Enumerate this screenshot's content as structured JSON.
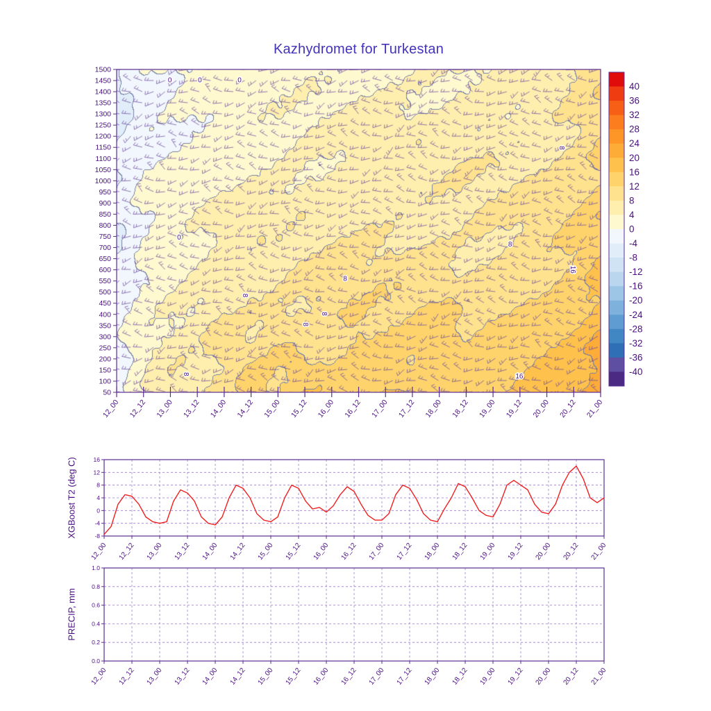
{
  "title": "Kazhydromet for Turkestan",
  "colors": {
    "title": "#4333b8",
    "axis": "#5b2d91",
    "tick_text": "#4a0e82",
    "grid_dash": "#9b7fc7",
    "series_line": "#ef2020",
    "barb": "#6a4a9a",
    "contour_line": "#7882a5",
    "background": "#ffffff"
  },
  "x_ticks": [
    "12_00",
    "12_12",
    "13_00",
    "13_12",
    "14_00",
    "14_12",
    "15_00",
    "15_12",
    "16_00",
    "16_12",
    "17_00",
    "17_12",
    "18_00",
    "18_12",
    "19_00",
    "19_12",
    "20_00",
    "20_12",
    "21_00"
  ],
  "colorbar": {
    "labels": [
      40,
      36,
      32,
      28,
      24,
      20,
      16,
      12,
      8,
      4,
      0,
      -4,
      -8,
      -12,
      -16,
      -20,
      -24,
      -28,
      -32,
      -36,
      -40
    ],
    "segment_colors": [
      "#e00b0b",
      "#ef3c10",
      "#f75f16",
      "#fb7d1d",
      "#fd9527",
      "#fdac38",
      "#fec14c",
      "#fed36b",
      "#fee28d",
      "#feefae",
      "#fff9d0",
      "#f2f7fd",
      "#e1eefa",
      "#cfe3f5",
      "#b9d6ee",
      "#9cc5e6",
      "#7eb2dc",
      "#5f9cd1",
      "#4187c4",
      "#2f6fb5",
      "#5e4fa2",
      "#4a2a82"
    ]
  },
  "contour_labels": [
    {
      "text": "0",
      "fx": 0.11,
      "fy": 0.04,
      "rot": 0
    },
    {
      "text": "0",
      "fx": 0.172,
      "fy": 0.04,
      "rot": 0
    },
    {
      "text": "0",
      "fx": 0.254,
      "fy": 0.04,
      "rot": 0
    },
    {
      "text": "0",
      "fx": 0.129,
      "fy": 0.527,
      "rot": 0
    },
    {
      "text": "8",
      "fx": 0.261,
      "fy": 0.7,
      "rot": 90
    },
    {
      "text": "8",
      "fx": 0.139,
      "fy": 0.944,
      "rot": 90
    },
    {
      "text": "8",
      "fx": 0.386,
      "fy": 0.79,
      "rot": 90
    },
    {
      "text": "8",
      "fx": 0.425,
      "fy": 0.757,
      "rot": 90
    },
    {
      "text": "8",
      "fx": 0.472,
      "fy": 0.655,
      "rot": 0
    },
    {
      "text": "8",
      "fx": 0.813,
      "fy": 0.548,
      "rot": 0
    },
    {
      "text": "8",
      "fx": 0.915,
      "fy": 0.243,
      "rot": 90
    },
    {
      "text": "16",
      "fx": 0.938,
      "fy": 0.62,
      "rot": 90
    },
    {
      "text": "16",
      "fx": 0.832,
      "fy": 0.957,
      "rot": 0
    }
  ],
  "chart_data": [
    {
      "type": "heatmap",
      "name": "temperature-height-cross-section",
      "title": "Kazhydromet for Turkestan",
      "units": "deg C",
      "y_levels": [
        1500,
        1450,
        1400,
        1350,
        1300,
        1250,
        1200,
        1150,
        1100,
        1050,
        1000,
        950,
        900,
        850,
        800,
        750,
        700,
        650,
        600,
        550,
        500,
        450,
        400,
        350,
        300,
        250,
        200,
        150,
        100,
        50
      ],
      "contour_label_values": [
        0,
        8,
        16
      ],
      "values_grid": [
        [
          -5,
          -1,
          0,
          1,
          1,
          2,
          2,
          3,
          3,
          3,
          4,
          4,
          4,
          5,
          5,
          6,
          6,
          8,
          10
        ],
        [
          -5,
          -1,
          0,
          1,
          2,
          2,
          2,
          3,
          3,
          4,
          4,
          4,
          5,
          5,
          5,
          6,
          6,
          8,
          11
        ],
        [
          -5,
          -1,
          0,
          1,
          2,
          2,
          3,
          3,
          4,
          4,
          5,
          5,
          5,
          5,
          6,
          6,
          7,
          9,
          12
        ],
        [
          -5,
          -1,
          0,
          2,
          2,
          3,
          3,
          4,
          4,
          5,
          5,
          6,
          6,
          6,
          6,
          7,
          7,
          9,
          12
        ],
        [
          -4,
          0,
          1,
          2,
          3,
          3,
          4,
          4,
          5,
          5,
          6,
          6,
          6,
          7,
          7,
          7,
          8,
          10,
          13
        ],
        [
          -4,
          0,
          1,
          2,
          3,
          4,
          5,
          6,
          6,
          6,
          6,
          7,
          7,
          7,
          7,
          8,
          8,
          10,
          13
        ],
        [
          -4,
          0,
          2,
          3,
          4,
          5,
          6,
          7,
          7,
          7,
          7,
          7,
          7,
          8,
          8,
          8,
          9,
          11,
          14
        ],
        [
          -4,
          0,
          2,
          3,
          5,
          6,
          6,
          7,
          7,
          8,
          8,
          8,
          8,
          8,
          8,
          9,
          10,
          12,
          15
        ],
        [
          -3,
          1,
          3,
          4,
          5,
          6,
          7,
          7,
          8,
          8,
          9,
          9,
          9,
          8,
          9,
          10,
          11,
          13,
          16
        ],
        [
          -3,
          1,
          3,
          5,
          6,
          7,
          7,
          8,
          9,
          9,
          10,
          10,
          10,
          9,
          10,
          11,
          12,
          14,
          17
        ],
        [
          -3,
          2,
          4,
          5,
          7,
          8,
          8,
          9,
          10,
          11,
          11,
          11,
          11,
          10,
          11,
          12,
          13,
          15,
          18
        ],
        [
          -2,
          2,
          4,
          6,
          9,
          8,
          11,
          10,
          11,
          13,
          12,
          12,
          14,
          11,
          12,
          13,
          14,
          16,
          19
        ],
        [
          -2,
          3,
          5,
          6,
          10,
          9,
          12,
          11,
          12,
          14,
          13,
          13,
          15,
          12,
          13,
          14,
          15,
          17,
          20
        ],
        [
          -2,
          3,
          7,
          7,
          8,
          12,
          11,
          14,
          13,
          13,
          16,
          14,
          14,
          15,
          14,
          15,
          16,
          18,
          21
        ],
        [
          -2,
          4,
          8,
          7,
          9,
          13,
          12,
          15,
          14,
          14,
          17,
          15,
          15,
          16,
          15,
          16,
          17,
          19,
          22
        ]
      ]
    },
    {
      "type": "line",
      "name": "xgboost-t2",
      "axis_title": "XGBoost T2 (deg C)",
      "y_ticks": [
        -8,
        -4,
        0,
        4,
        8,
        12,
        16
      ],
      "ylim": [
        -8,
        16
      ],
      "x_start_hour": 0,
      "x_step_hours": 3,
      "x_total_hours": 216,
      "values": [
        -7.5,
        -5,
        2,
        5,
        4.5,
        2,
        -2,
        -3.5,
        -4,
        -3.5,
        3,
        6.5,
        5.5,
        3,
        -2,
        -4,
        -4.5,
        -2,
        4,
        8,
        7,
        4,
        -1,
        -3,
        -3.5,
        -2,
        4,
        8,
        7,
        3,
        0.5,
        1,
        -0.5,
        1.5,
        5,
        7.5,
        6,
        2,
        -1.5,
        -3,
        -3,
        -1,
        5,
        8,
        7,
        3.5,
        -1,
        -3,
        -3.5,
        0.5,
        4,
        8.5,
        7.5,
        4,
        0,
        -1.5,
        -2,
        2,
        8,
        9.5,
        8,
        6.5,
        2,
        -0.5,
        -1,
        2,
        8,
        12,
        14,
        10,
        4,
        2.5,
        4
      ]
    },
    {
      "type": "line",
      "name": "precip",
      "axis_title": "PRECIP, mm",
      "y_ticks": [
        "0.0",
        "0.2",
        "0.4",
        "0.6",
        "0.8",
        "1.0"
      ],
      "ylim": [
        0,
        1
      ],
      "values": []
    }
  ]
}
